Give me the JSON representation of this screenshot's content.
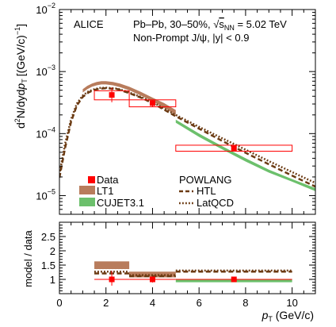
{
  "chart_data": [
    {
      "type": "line",
      "panel": "spectrum",
      "experiment": "ALICE",
      "annotation_line1_prefix": "Pb–Pb, 30–50%, ",
      "annotation_sqrt_s": "s",
      "annotation_sqrt_sub": "NN",
      "annotation_line1_suffix": " = 5.02 TeV",
      "annotation_line2": "Non-Prompt J/ψ, |y| < 0.9",
      "ylabel": {
        "prefix": "d",
        "sup2": "2",
        "mid": "N/dyd",
        "p": "p",
        "sub": "T",
        "unit": "[(GeV/c)",
        "unit_sup": "−1",
        "unit_close": "]"
      },
      "y_scale": "log",
      "xlim": [
        0,
        11
      ],
      "ylim": [
        5e-06,
        0.01
      ],
      "y_tick_labels": [
        {
          "value": 1e-05,
          "base": "10",
          "exp": "−5"
        },
        {
          "value": 0.0001,
          "base": "10",
          "exp": "−4"
        },
        {
          "value": 0.001,
          "base": "10",
          "exp": "−3"
        },
        {
          "value": 0.01,
          "base": "10",
          "exp": "−2"
        }
      ],
      "data": [
        {
          "x": 2.25,
          "y": 0.00042,
          "x_low": 1.5,
          "x_high": 3.0,
          "sys_low": 0.00035,
          "sys_high": 0.00049,
          "stat_low": 0.00032,
          "stat_high": 0.00055
        },
        {
          "x": 4.0,
          "y": 0.00031,
          "x_low": 3.0,
          "x_high": 5.0,
          "sys_low": 0.00027,
          "sys_high": 0.00035,
          "stat_low": 0.00027,
          "stat_high": 0.00035
        },
        {
          "x": 7.5,
          "y": 5.8e-05,
          "x_low": 5.0,
          "x_high": 10.0,
          "sys_low": 5.2e-05,
          "sys_high": 6.5e-05,
          "stat_low": 5.4e-05,
          "stat_high": 6.2e-05
        }
      ],
      "series": [
        {
          "name": "LT1",
          "style": "band",
          "color": "#b87c5c",
          "x": [
            1.0,
            1.2,
            1.4,
            1.6,
            1.8,
            2.0,
            2.3,
            2.6,
            3.0,
            3.5,
            4.0,
            4.5,
            5.0
          ],
          "y_low": [
            0.00046,
            0.00052,
            0.00057,
            0.0006,
            0.00062,
            0.00062,
            0.0006,
            0.00056,
            0.0005,
            0.00041,
            0.00033,
            0.00026,
            0.0002
          ],
          "y_high": [
            0.00052,
            0.00059,
            0.00064,
            0.00068,
            0.0007,
            0.0007,
            0.00068,
            0.00064,
            0.00057,
            0.00047,
            0.00038,
            0.00031,
            0.00024
          ]
        },
        {
          "name": "CUJET3.1",
          "style": "band",
          "color": "#6cc06c",
          "x": [
            5.0,
            6.0,
            7.0,
            8.0,
            9.0,
            10.0,
            11.0
          ],
          "y_low": [
            0.00015,
            8.85e-05,
            5.55e-05,
            3.55e-05,
            2.35e-05,
            1.68e-05,
            1.18e-05
          ],
          "y_high": [
            0.000168,
            0.0001,
            6.25e-05,
            4e-05,
            2.62e-05,
            1.85e-05,
            1.32e-05
          ]
        },
        {
          "name": "HTL",
          "group": "POWLANG",
          "style": "dashed",
          "color": "#6b3a12",
          "x": [
            0.0,
            0.25,
            0.5,
            0.75,
            1.0,
            1.25,
            1.5,
            1.75,
            2.0,
            2.5,
            3.0,
            3.5,
            4.0,
            5.0,
            6.0,
            7.0,
            8.0,
            9.0,
            10.0,
            11.0
          ],
          "y": [
            1.95e-05,
            6e-05,
            0.000155,
            0.000285,
            0.00039,
            0.00046,
            0.000505,
            0.00053,
            0.00054,
            0.00052,
            0.00045,
            0.00038,
            0.00031,
            0.00019,
            0.00012,
            7.6e-05,
            4.9e-05,
            3.2e-05,
            2.1e-05,
            1.4e-05
          ]
        },
        {
          "name": "LatQCD",
          "group": "POWLANG",
          "style": "dotted",
          "color": "#6b3a12",
          "x": [
            0.0,
            0.25,
            0.5,
            0.75,
            1.0,
            1.25,
            1.5,
            1.75,
            2.0,
            2.5,
            3.0,
            3.5,
            4.0,
            5.0,
            6.0,
            7.0,
            8.0,
            9.0,
            10.0,
            11.0
          ],
          "y": [
            2.2e-05,
            7e-05,
            0.00017,
            0.000305,
            0.00041,
            0.00048,
            0.00052,
            0.000545,
            0.00055,
            0.00053,
            0.00046,
            0.00039,
            0.00032,
            0.0002,
            0.000128,
            8.4e-05,
            5.5e-05,
            3.6e-05,
            2.4e-05,
            1.6e-05
          ]
        }
      ],
      "legend": {
        "placement": "bottom-center",
        "data_label": "Data",
        "lt1_label": "LT1",
        "cujet_label": "CUJET3.1",
        "powlang_header": "POWLANG",
        "htl_label": "HTL",
        "latqcd_label": "LatQCD"
      }
    },
    {
      "type": "bar",
      "panel": "ratio",
      "ylabel": "model / data",
      "xlabel": {
        "p": "p",
        "sub": "T",
        "unit": " (GeV/c)"
      },
      "xlim": [
        0,
        11
      ],
      "ylim": [
        0.5,
        3.0
      ],
      "y_ticks": [
        1,
        1.5,
        2,
        2.5
      ],
      "y_tick_labels": [
        "1",
        "1.5",
        "2",
        "2.5"
      ],
      "x_ticks": [
        0,
        2,
        4,
        6,
        8,
        10
      ],
      "x_tick_labels": [
        "0",
        "2",
        "4",
        "6",
        "8",
        "10"
      ],
      "data": [
        {
          "x": 2.25,
          "y": 1.0,
          "x_low": 1.5,
          "x_high": 3.0,
          "stat_low": 0.78,
          "stat_high": 1.3
        },
        {
          "x": 4.0,
          "y": 1.0,
          "x_low": 3.0,
          "x_high": 5.0,
          "stat_low": 0.89,
          "stat_high": 1.1
        },
        {
          "x": 7.5,
          "y": 1.0,
          "x_low": 5.0,
          "x_high": 10.0,
          "stat_low": 0.93,
          "stat_high": 1.07
        }
      ],
      "series": [
        {
          "name": "LT1",
          "color": "#b87c5c",
          "bins": [
            {
              "x_low": 1.5,
              "x_high": 3.0,
              "low": 1.36,
              "high": 1.63
            },
            {
              "x_low": 3.0,
              "x_high": 5.0,
              "low": 1.07,
              "high": 1.27
            }
          ]
        },
        {
          "name": "CUJET3.1",
          "color": "#6cc06c",
          "bins": [
            {
              "x_low": 5.0,
              "x_high": 10.0,
              "low": 0.9,
              "high": 0.99
            }
          ]
        },
        {
          "name": "HTL",
          "style": "dashed",
          "color": "#6b3a12",
          "bins": [
            {
              "x_low": 1.5,
              "x_high": 3.0,
              "value": 1.21
            },
            {
              "x_low": 3.0,
              "x_high": 5.0,
              "value": 1.11
            },
            {
              "x_low": 5.0,
              "x_high": 10.0,
              "value": 1.27
            }
          ]
        },
        {
          "name": "LatQCD",
          "style": "dotted",
          "color": "#6b3a12",
          "bins": [
            {
              "x_low": 1.5,
              "x_high": 3.0,
              "value": 1.27
            },
            {
              "x_low": 3.0,
              "x_high": 5.0,
              "value": 1.15
            },
            {
              "x_low": 5.0,
              "x_high": 10.0,
              "value": 1.31
            }
          ]
        }
      ]
    }
  ]
}
